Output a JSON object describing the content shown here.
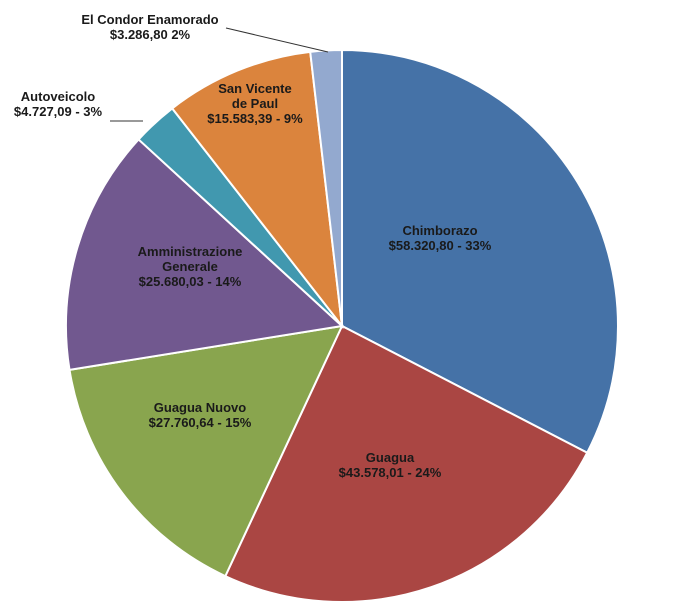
{
  "chart_data": {
    "type": "pie",
    "title": "",
    "start_angle_deg": 0,
    "direction": "clockwise",
    "slices": [
      {
        "name": "Chimborazo",
        "value": 58320.8,
        "percent": 33,
        "color": "#4572A7",
        "label_lines": [
          "Chimborazo",
          "$58.320,80 - 33%"
        ]
      },
      {
        "name": "Guagua",
        "value": 43578.01,
        "percent": 24,
        "color": "#AA4643",
        "label_lines": [
          "Guagua",
          "$43.578,01 -  24%"
        ]
      },
      {
        "name": "Guagua Nuovo",
        "value": 27760.64,
        "percent": 15,
        "color": "#89A54E",
        "label_lines": [
          "Guagua Nuovo",
          "$27.760,64 - 15%"
        ]
      },
      {
        "name": "Amministrazione Generale",
        "value": 25680.03,
        "percent": 14,
        "color": "#71588F",
        "label_lines": [
          "Amministrazione",
          "Generale",
          "$25.680,03 - 14%"
        ]
      },
      {
        "name": "Autoveicolo",
        "value": 4727.09,
        "percent": 3,
        "color": "#4198AF",
        "label_lines": [
          "Autoveicolo",
          "$4.727,09 - 3%"
        ]
      },
      {
        "name": "San Vicente de Paul",
        "value": 15583.39,
        "percent": 9,
        "color": "#DB843D",
        "label_lines": [
          "San Vicente",
          "de Paul",
          "$15.583,39 - 9%"
        ]
      },
      {
        "name": "El Condor Enamorado",
        "value": 3286.8,
        "percent": 2,
        "color": "#93A9CF",
        "label_lines": [
          "El Condor Enamorado",
          "$3.286,80  2%"
        ]
      }
    ],
    "legend": "none",
    "slice_border_color": "#ffffff"
  }
}
